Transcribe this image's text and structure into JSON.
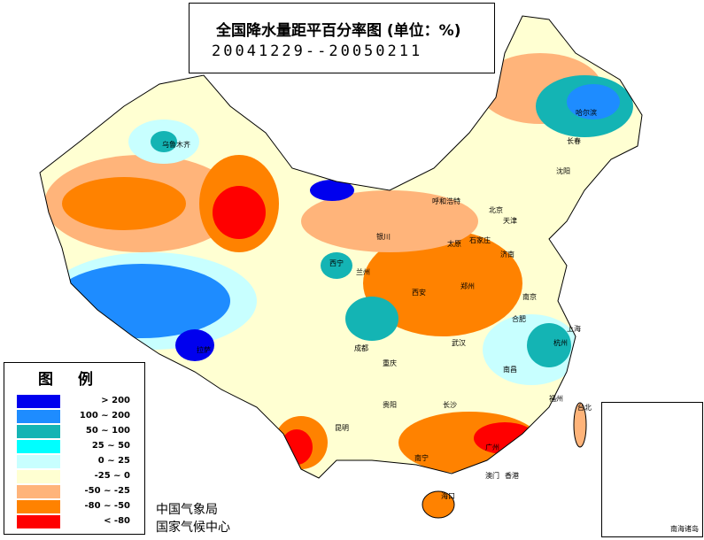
{
  "title": "全国降水量距平百分率图 (单位：%)",
  "date_range": "20041229--20050211",
  "legend": {
    "title": "图例",
    "items": [
      {
        "label": "> 200",
        "color": "#0000ee"
      },
      {
        "label": "100 ~ 200",
        "color": "#1e8cff"
      },
      {
        "label": "50 ~ 100",
        "color": "#14b4b4"
      },
      {
        "label": "25 ~ 50",
        "color": "#00ffff"
      },
      {
        "label": "0 ~ 25",
        "color": "#c8ffff"
      },
      {
        "label": "-25 ~ 0",
        "color": "#ffffd2"
      },
      {
        "label": "-50 ~ -25",
        "color": "#ffb47a"
      },
      {
        "label": "-80 ~ -50",
        "color": "#ff8200"
      },
      {
        "label": "< -80",
        "color": "#ff0000"
      }
    ]
  },
  "org": [
    "中国气象局",
    "国家气候中心"
  ],
  "inset_label": "南海诸岛",
  "cities": [
    {
      "name": "乌鲁木齐"
    },
    {
      "name": "哈尔滨"
    },
    {
      "name": "长春"
    },
    {
      "name": "沈阳"
    },
    {
      "name": "呼和浩特"
    },
    {
      "name": "北京"
    },
    {
      "name": "天津"
    },
    {
      "name": "石家庄"
    },
    {
      "name": "太原"
    },
    {
      "name": "济南"
    },
    {
      "name": "银川"
    },
    {
      "name": "兰州"
    },
    {
      "name": "西宁"
    },
    {
      "name": "西安"
    },
    {
      "name": "郑州"
    },
    {
      "name": "南京"
    },
    {
      "name": "合肥"
    },
    {
      "name": "上海"
    },
    {
      "name": "杭州"
    },
    {
      "name": "武汉"
    },
    {
      "name": "长沙"
    },
    {
      "name": "南昌"
    },
    {
      "name": "福州"
    },
    {
      "name": "台北"
    },
    {
      "name": "广州"
    },
    {
      "name": "香港"
    },
    {
      "name": "澳门"
    },
    {
      "name": "南宁"
    },
    {
      "name": "海口"
    },
    {
      "name": "昆明"
    },
    {
      "name": "贵阳"
    },
    {
      "name": "成都"
    },
    {
      "name": "重庆"
    },
    {
      "name": "拉萨"
    }
  ]
}
